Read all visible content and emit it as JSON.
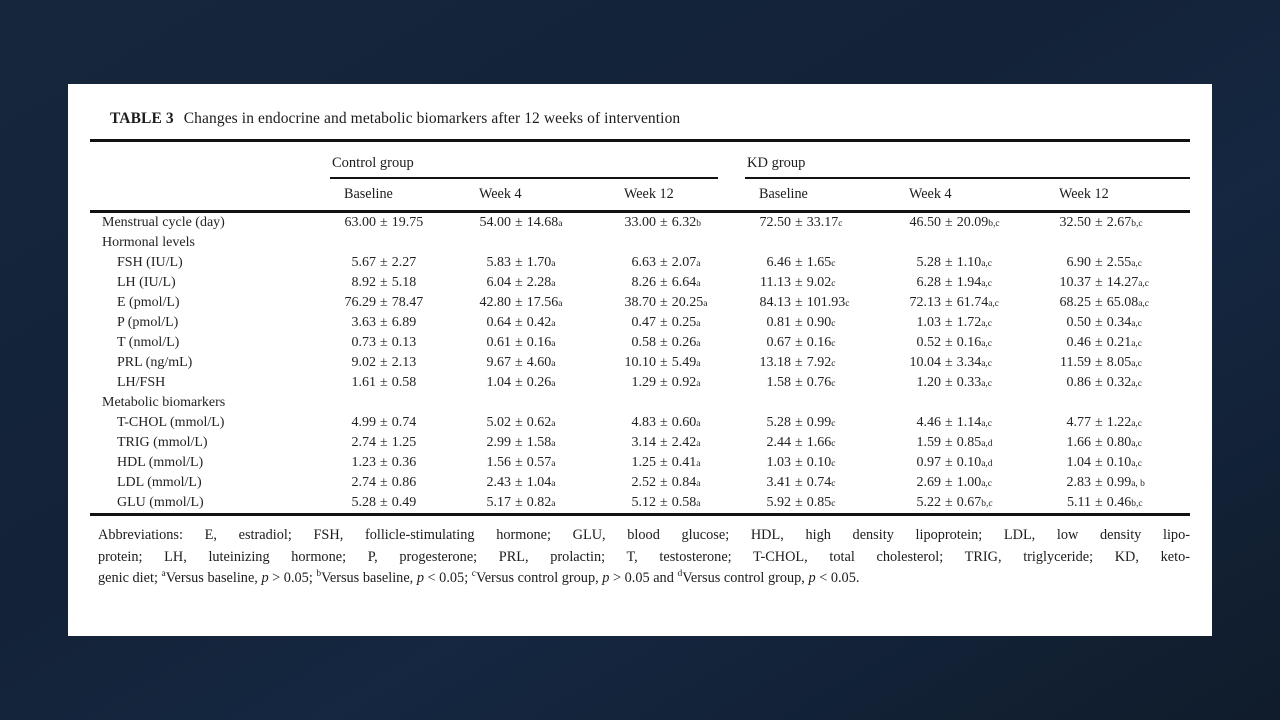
{
  "colors": {
    "slide_background_top": "#16273c",
    "slide_background_bottom": "#101c2b",
    "card_background": "#ffffff",
    "text": "#1f1f1f",
    "rule": "#121212"
  },
  "table": {
    "title_label": "TABLE 3",
    "title_text": "Changes in endocrine and metabolic biomarkers after 12 weeks of intervention",
    "groups": [
      {
        "label": "Control group"
      },
      {
        "label": "KD group"
      }
    ],
    "subheaders": [
      "Baseline",
      "Week 4",
      "Week 12",
      "Baseline",
      "Week 4",
      "Week 12"
    ],
    "rows": [
      {
        "label": "Menstrual cycle (day)",
        "indent": false,
        "section": false,
        "cells": [
          {
            "v": "63.00 ± 19.75",
            "s": ""
          },
          {
            "v": "54.00 ± 14.68",
            "s": "a"
          },
          {
            "v": "33.00 ± 6.32",
            "s": "b"
          },
          {
            "v": "72.50 ± 33.17",
            "s": "c"
          },
          {
            "v": "46.50 ± 20.09",
            "s": "b,c"
          },
          {
            "v": "32.50 ± 2.67",
            "s": "b,c"
          }
        ]
      },
      {
        "label": "Hormonal levels",
        "indent": false,
        "section": true,
        "cells": []
      },
      {
        "label": "FSH (IU/L)",
        "indent": true,
        "section": false,
        "cells": [
          {
            "v": "5.67 ± 2.27",
            "s": ""
          },
          {
            "v": "5.83 ± 1.70",
            "s": "a"
          },
          {
            "v": "6.63 ± 2.07",
            "s": "a"
          },
          {
            "v": "6.46 ± 1.65",
            "s": "c"
          },
          {
            "v": "5.28 ± 1.10",
            "s": "a,c"
          },
          {
            "v": "6.90 ± 2.55",
            "s": "a,c"
          }
        ]
      },
      {
        "label": "LH (IU/L)",
        "indent": true,
        "section": false,
        "cells": [
          {
            "v": "8.92 ± 5.18",
            "s": ""
          },
          {
            "v": "6.04 ± 2.28",
            "s": "a"
          },
          {
            "v": "8.26 ± 6.64",
            "s": "a"
          },
          {
            "v": "11.13 ± 9.02",
            "s": "c"
          },
          {
            "v": "6.28 ± 1.94",
            "s": "a,c"
          },
          {
            "v": "10.37 ± 14.27",
            "s": "a,c"
          }
        ]
      },
      {
        "label": "E (pmol/L)",
        "indent": true,
        "section": false,
        "cells": [
          {
            "v": "76.29 ± 78.47",
            "s": ""
          },
          {
            "v": "42.80 ± 17.56",
            "s": "a"
          },
          {
            "v": "38.70 ± 20.25",
            "s": "a"
          },
          {
            "v": "84.13 ± 101.93",
            "s": "c"
          },
          {
            "v": "72.13 ± 61.74",
            "s": "a,c"
          },
          {
            "v": "68.25 ± 65.08",
            "s": "a,c"
          }
        ]
      },
      {
        "label": "P (pmol/L)",
        "indent": true,
        "section": false,
        "cells": [
          {
            "v": "3.63 ± 6.89",
            "s": ""
          },
          {
            "v": "0.64 ± 0.42",
            "s": "a"
          },
          {
            "v": "0.47 ± 0.25",
            "s": "a"
          },
          {
            "v": "0.81 ± 0.90",
            "s": "c"
          },
          {
            "v": "1.03 ± 1.72",
            "s": "a,c"
          },
          {
            "v": "0.50 ± 0.34",
            "s": "a,c"
          }
        ]
      },
      {
        "label": "T (nmol/L)",
        "indent": true,
        "section": false,
        "cells": [
          {
            "v": "0.73 ± 0.13",
            "s": ""
          },
          {
            "v": "0.61 ± 0.16",
            "s": "a"
          },
          {
            "v": "0.58 ± 0.26",
            "s": "a"
          },
          {
            "v": "0.67 ± 0.16",
            "s": "c"
          },
          {
            "v": "0.52 ± 0.16",
            "s": "a,c"
          },
          {
            "v": "0.46 ± 0.21",
            "s": "a,c"
          }
        ]
      },
      {
        "label": "PRL (ng/mL)",
        "indent": true,
        "section": false,
        "cells": [
          {
            "v": "9.02 ± 2.13",
            "s": ""
          },
          {
            "v": "9.67 ± 4.60",
            "s": "a"
          },
          {
            "v": "10.10 ± 5.49",
            "s": "a"
          },
          {
            "v": "13.18 ± 7.92",
            "s": "c"
          },
          {
            "v": "10.04 ± 3.34",
            "s": "a,c"
          },
          {
            "v": "11.59 ± 8.05",
            "s": "a,c"
          }
        ]
      },
      {
        "label": "LH/FSH",
        "indent": true,
        "section": false,
        "cells": [
          {
            "v": "1.61 ± 0.58",
            "s": ""
          },
          {
            "v": "1.04 ± 0.26",
            "s": "a"
          },
          {
            "v": "1.29 ± 0.92",
            "s": "a"
          },
          {
            "v": "1.58 ± 0.76",
            "s": "c"
          },
          {
            "v": "1.20 ± 0.33",
            "s": "a,c"
          },
          {
            "v": "0.86 ± 0.32",
            "s": "a,c"
          }
        ]
      },
      {
        "label": "Metabolic biomarkers",
        "indent": false,
        "section": true,
        "cells": []
      },
      {
        "label": "T-CHOL (mmol/L)",
        "indent": true,
        "section": false,
        "cells": [
          {
            "v": "4.99 ± 0.74",
            "s": ""
          },
          {
            "v": "5.02 ± 0.62",
            "s": "a"
          },
          {
            "v": "4.83 ± 0.60",
            "s": "a"
          },
          {
            "v": "5.28 ± 0.99",
            "s": "c"
          },
          {
            "v": "4.46 ± 1.14",
            "s": "a,c"
          },
          {
            "v": "4.77 ± 1.22",
            "s": "a,c"
          }
        ]
      },
      {
        "label": "TRIG (mmol/L)",
        "indent": true,
        "section": false,
        "cells": [
          {
            "v": "2.74 ± 1.25",
            "s": ""
          },
          {
            "v": "2.99 ± 1.58",
            "s": "a"
          },
          {
            "v": "3.14 ± 2.42",
            "s": "a"
          },
          {
            "v": "2.44 ± 1.66",
            "s": "c"
          },
          {
            "v": "1.59 ± 0.85",
            "s": "a,d"
          },
          {
            "v": "1.66 ± 0.80",
            "s": "a,c"
          }
        ]
      },
      {
        "label": "HDL (mmol/L)",
        "indent": true,
        "section": false,
        "cells": [
          {
            "v": "1.23 ± 0.36",
            "s": ""
          },
          {
            "v": "1.56 ± 0.57",
            "s": "a"
          },
          {
            "v": "1.25 ± 0.41",
            "s": "a"
          },
          {
            "v": "1.03 ± 0.10",
            "s": "c"
          },
          {
            "v": "0.97 ± 0.10",
            "s": "a,d"
          },
          {
            "v": "1.04 ± 0.10",
            "s": "a,c"
          }
        ]
      },
      {
        "label": "LDL (mmol/L)",
        "indent": true,
        "section": false,
        "cells": [
          {
            "v": "2.74 ± 0.86",
            "s": ""
          },
          {
            "v": "2.43 ± 1.04",
            "s": "a"
          },
          {
            "v": "2.52 ± 0.84",
            "s": "a"
          },
          {
            "v": "3.41 ± 0.74",
            "s": "c"
          },
          {
            "v": "2.69 ± 1.00",
            "s": "a,c"
          },
          {
            "v": "2.83 ± 0.99",
            "s": "a, b"
          }
        ]
      },
      {
        "label": "GLU (mmol/L)",
        "indent": true,
        "section": false,
        "cells": [
          {
            "v": "5.28 ± 0.49",
            "s": ""
          },
          {
            "v": "5.17 ± 0.82",
            "s": "a"
          },
          {
            "v": "5.12 ± 0.58",
            "s": "a"
          },
          {
            "v": "5.92 ± 0.85",
            "s": "c"
          },
          {
            "v": "5.22 ± 0.67",
            "s": "b,c"
          },
          {
            "v": "5.11 ± 0.46",
            "s": "b,c"
          }
        ]
      }
    ]
  },
  "footnote": {
    "lines": [
      [
        {
          "t": "Abbreviations: E, estradiol; FSH, follicle-stimulating hormone; GLU, blood glucose; HDL, high density lipoprotein; LDL, low density lipo-",
          "k": ""
        }
      ],
      [
        {
          "t": "protein; LH, luteinizing hormone; P, progesterone; PRL, prolactin; T, testosterone; T-CHOL, total cholesterol; TRIG, triglyceride; KD, keto-",
          "k": ""
        }
      ],
      [
        {
          "t": "genic diet; ",
          "k": ""
        },
        {
          "t": "a",
          "k": "sup"
        },
        {
          "t": "Versus baseline, ",
          "k": ""
        },
        {
          "t": "p",
          "k": "i"
        },
        {
          "t": " > 0.05; ",
          "k": ""
        },
        {
          "t": "b",
          "k": "sup"
        },
        {
          "t": "Versus baseline, ",
          "k": ""
        },
        {
          "t": "p",
          "k": "i"
        },
        {
          "t": " < 0.05; ",
          "k": ""
        },
        {
          "t": "c",
          "k": "sup"
        },
        {
          "t": "Versus control group, ",
          "k": ""
        },
        {
          "t": "p",
          "k": "i"
        },
        {
          "t": " > 0.05 and ",
          "k": ""
        },
        {
          "t": "d",
          "k": "sup"
        },
        {
          "t": "Versus control group, ",
          "k": ""
        },
        {
          "t": "p",
          "k": "i"
        },
        {
          "t": " < 0.05.",
          "k": ""
        }
      ]
    ]
  }
}
